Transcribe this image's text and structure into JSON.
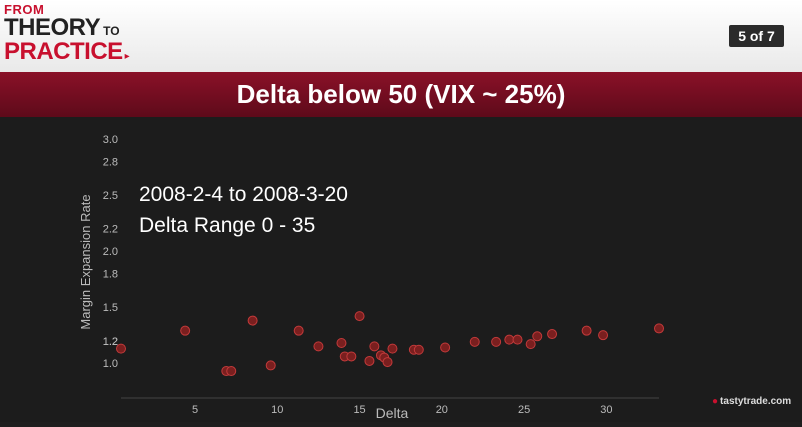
{
  "header": {
    "logo": {
      "from": "FROM",
      "theory": "THEORY",
      "to": "TO",
      "practice": "PRACTICE",
      "arrow": "▸"
    },
    "page_indicator": "5 of 7"
  },
  "title": "Delta below 50 (VIX ~ 25%)",
  "annotation": {
    "line1": "2008-2-4 to 2008-3-20",
    "line2": "Delta Range 0 - 35"
  },
  "watermark": "tastytrade.com",
  "colors": {
    "point": "#7a1f1f",
    "point_stroke": "#c23a3a",
    "title_bar": "#7a0f22",
    "accent": "#c8102e"
  },
  "chart_data": {
    "type": "scatter",
    "title": "Delta below 50 (VIX ~ 25%)",
    "xlabel": "Delta",
    "ylabel": "Margin Expansion Rate",
    "xlim": [
      0.5,
      33.2
    ],
    "ylim": [
      0.85,
      3.0
    ],
    "xticks": [
      5,
      10,
      15,
      20,
      25,
      30
    ],
    "yticks": [
      "1.0",
      "1.2",
      "1.2",
      "1.5",
      "1.8",
      "2.0",
      "2.2",
      "2.5",
      "2.8",
      "3.0"
    ],
    "ytick_values": [
      1.0,
      1.2,
      1.2,
      1.5,
      1.8,
      2.0,
      2.2,
      2.5,
      2.8,
      3.0
    ],
    "grid": false,
    "series": [
      {
        "points": [
          [
            0.5,
            1.13
          ],
          [
            4.4,
            1.29
          ],
          [
            6.9,
            0.93
          ],
          [
            7.2,
            0.93
          ],
          [
            8.5,
            1.38
          ],
          [
            9.6,
            0.98
          ],
          [
            11.3,
            1.29
          ],
          [
            12.5,
            1.15
          ],
          [
            13.9,
            1.18
          ],
          [
            14.1,
            1.06
          ],
          [
            14.5,
            1.06
          ],
          [
            15.0,
            1.42
          ],
          [
            15.6,
            1.02
          ],
          [
            15.9,
            1.15
          ],
          [
            16.3,
            1.07
          ],
          [
            16.5,
            1.05
          ],
          [
            16.7,
            1.01
          ],
          [
            17.0,
            1.13
          ],
          [
            18.3,
            1.12
          ],
          [
            18.6,
            1.12
          ],
          [
            20.2,
            1.14
          ],
          [
            22.0,
            1.19
          ],
          [
            23.3,
            1.19
          ],
          [
            24.1,
            1.21
          ],
          [
            24.6,
            1.21
          ],
          [
            25.4,
            1.17
          ],
          [
            25.8,
            1.24
          ],
          [
            26.7,
            1.26
          ],
          [
            28.8,
            1.29
          ],
          [
            29.8,
            1.25
          ],
          [
            33.2,
            1.31
          ]
        ]
      }
    ]
  }
}
